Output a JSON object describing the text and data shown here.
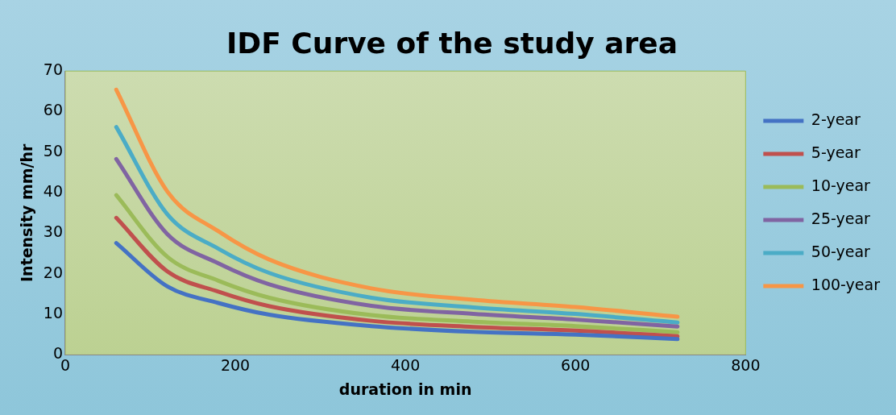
{
  "chart_data": {
    "type": "line",
    "title": "IDF Curve of the study area",
    "xlabel": "duration in min",
    "ylabel": "Intensity mm/hr",
    "x": [
      60,
      120,
      180,
      240,
      360,
      480,
      600,
      720
    ],
    "xlim": [
      0,
      800
    ],
    "xticks": [
      0,
      200,
      400,
      600,
      800
    ],
    "ylim": [
      0,
      70
    ],
    "yticks": [
      0,
      10,
      20,
      30,
      40,
      50,
      60,
      70
    ],
    "grid": false,
    "legend": "right",
    "marker": "none",
    "line_style": "solid",
    "series": [
      {
        "name": "2-year",
        "color": "#4472c4",
        "values": [
          27.6,
          16.9,
          12.8,
          9.9,
          7.1,
          5.7,
          5.0,
          3.9
        ]
      },
      {
        "name": "5-year",
        "color": "#c0504d",
        "values": [
          33.8,
          20.6,
          15.6,
          12.0,
          8.4,
          6.9,
          6.0,
          4.6
        ]
      },
      {
        "name": "10-year",
        "color": "#9bbb59",
        "values": [
          39.4,
          24.2,
          18.3,
          14.1,
          9.8,
          8.2,
          7.1,
          5.6
        ]
      },
      {
        "name": "25-year",
        "color": "#8064a2",
        "values": [
          48.3,
          29.8,
          22.6,
          17.4,
          12.1,
          10.1,
          8.7,
          7.0
        ]
      },
      {
        "name": "50-year",
        "color": "#4bacc6",
        "values": [
          56.2,
          34.7,
          26.2,
          20.2,
          14.1,
          11.7,
          10.1,
          8.0
        ]
      },
      {
        "name": "100-year",
        "color": "#f79646",
        "values": [
          65.4,
          40.3,
          30.5,
          23.5,
          16.4,
          13.6,
          11.8,
          9.4
        ]
      }
    ]
  }
}
